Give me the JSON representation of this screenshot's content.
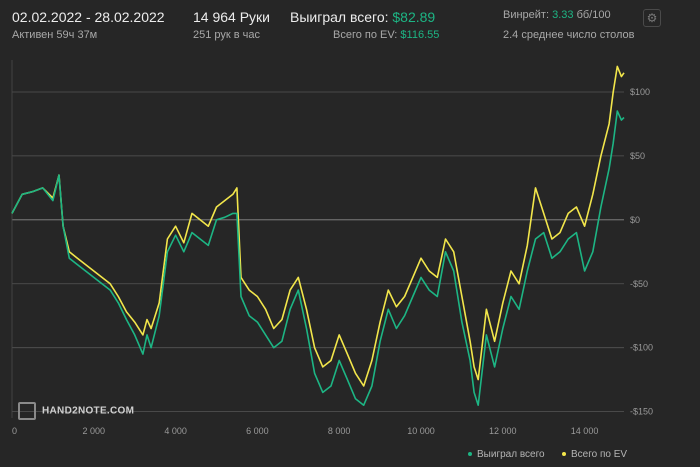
{
  "header": {
    "date_range": "02.02.2022 - 28.02.2022",
    "active_time": "Активен 59ч 37м",
    "hands": "14 964 Руки",
    "hands_per_hour": "251 рук в час",
    "won_label": "Выиграл всего:",
    "won_value": "$82.89",
    "ev_label": "Всего по EV:",
    "ev_value": "$116.55",
    "winrate_label": "Винрейт:",
    "winrate_value": "3.33",
    "winrate_unit": "бб/100",
    "avg_tables": "2.4 среднее число столов"
  },
  "watermark": "HAND2NOTE.COM",
  "colors": {
    "background": "#262626",
    "won": "#1db584",
    "ev": "#f2e64b",
    "grid": "#555555",
    "zero_line": "#8a8a8a"
  },
  "icons": {
    "settings": "gear-icon",
    "logo": "hand2note-logo-icon"
  },
  "chart_data": {
    "type": "line",
    "xlim": [
      0,
      14964
    ],
    "ylim": [
      -155,
      125
    ],
    "x_ticks": [
      0,
      2000,
      4000,
      6000,
      8000,
      10000,
      12000,
      14000
    ],
    "x_tick_labels": [
      "0",
      "2 000",
      "4 000",
      "6 000",
      "8 000",
      "10 000",
      "12 000",
      "14 000"
    ],
    "y_ticks": [
      100,
      50,
      0,
      -50,
      -100,
      -150
    ],
    "y_tick_labels": [
      "$100",
      "$50",
      "$0",
      "-$50",
      "-$100",
      "-$150"
    ],
    "grid": true,
    "legend_position": "bottom-right",
    "series": [
      {
        "name": "Выиграл всего",
        "color": "#1db584",
        "x": [
          0,
          250,
          500,
          750,
          1000,
          1150,
          1250,
          1400,
          1600,
          1800,
          2000,
          2200,
          2400,
          2600,
          2800,
          3000,
          3200,
          3300,
          3400,
          3600,
          3800,
          4000,
          4200,
          4400,
          4600,
          4800,
          5000,
          5200,
          5400,
          5500,
          5600,
          5800,
          6000,
          6200,
          6400,
          6600,
          6800,
          7000,
          7200,
          7400,
          7600,
          7800,
          8000,
          8200,
          8400,
          8600,
          8800,
          9000,
          9200,
          9400,
          9600,
          9800,
          10000,
          10200,
          10400,
          10600,
          10800,
          11000,
          11200,
          11300,
          11400,
          11600,
          11800,
          12000,
          12200,
          12400,
          12600,
          12800,
          13000,
          13200,
          13400,
          13600,
          13800,
          14000,
          14200,
          14400,
          14600,
          14700,
          14800,
          14900,
          14964
        ],
        "y": [
          5,
          20,
          22,
          25,
          15,
          35,
          -5,
          -30,
          -35,
          -40,
          -45,
          -50,
          -55,
          -65,
          -78,
          -90,
          -105,
          -90,
          -100,
          -75,
          -25,
          -12,
          -25,
          -10,
          -15,
          -20,
          0,
          2,
          5,
          5,
          -60,
          -75,
          -80,
          -90,
          -100,
          -95,
          -70,
          -55,
          -85,
          -120,
          -135,
          -130,
          -110,
          -125,
          -140,
          -145,
          -130,
          -95,
          -70,
          -85,
          -75,
          -60,
          -45,
          -55,
          -60,
          -25,
          -40,
          -80,
          -110,
          -135,
          -145,
          -90,
          -115,
          -85,
          -60,
          -70,
          -40,
          -15,
          -10,
          -30,
          -25,
          -15,
          -10,
          -40,
          -25,
          10,
          40,
          60,
          85,
          78,
          80
        ]
      },
      {
        "name": "Всего по EV",
        "color": "#f2e64b",
        "x": [
          0,
          250,
          500,
          750,
          1000,
          1150,
          1250,
          1400,
          1600,
          1800,
          2000,
          2200,
          2400,
          2600,
          2800,
          3000,
          3200,
          3300,
          3400,
          3600,
          3800,
          4000,
          4200,
          4400,
          4600,
          4800,
          5000,
          5200,
          5400,
          5500,
          5600,
          5800,
          6000,
          6200,
          6400,
          6600,
          6800,
          7000,
          7200,
          7400,
          7600,
          7800,
          8000,
          8200,
          8400,
          8600,
          8800,
          9000,
          9200,
          9400,
          9600,
          9800,
          10000,
          10200,
          10400,
          10600,
          10800,
          11000,
          11200,
          11300,
          11400,
          11600,
          11800,
          12000,
          12200,
          12400,
          12600,
          12800,
          13000,
          13200,
          13400,
          13600,
          13800,
          14000,
          14200,
          14400,
          14600,
          14700,
          14800,
          14900,
          14964
        ],
        "y": [
          5,
          20,
          22,
          25,
          17,
          35,
          -5,
          -25,
          -30,
          -35,
          -40,
          -45,
          -50,
          -60,
          -72,
          -80,
          -90,
          -78,
          -85,
          -65,
          -15,
          -5,
          -18,
          5,
          0,
          -5,
          10,
          15,
          20,
          25,
          -45,
          -55,
          -60,
          -70,
          -85,
          -78,
          -55,
          -45,
          -70,
          -100,
          -115,
          -110,
          -90,
          -105,
          -120,
          -130,
          -110,
          -80,
          -55,
          -68,
          -60,
          -45,
          -30,
          -40,
          -45,
          -15,
          -25,
          -60,
          -95,
          -115,
          -125,
          -70,
          -95,
          -65,
          -40,
          -50,
          -20,
          25,
          5,
          -15,
          -10,
          5,
          10,
          -5,
          20,
          50,
          75,
          100,
          120,
          112,
          115
        ]
      }
    ]
  },
  "legend": {
    "won": "Выиграл всего",
    "ev": "Всего по EV"
  }
}
